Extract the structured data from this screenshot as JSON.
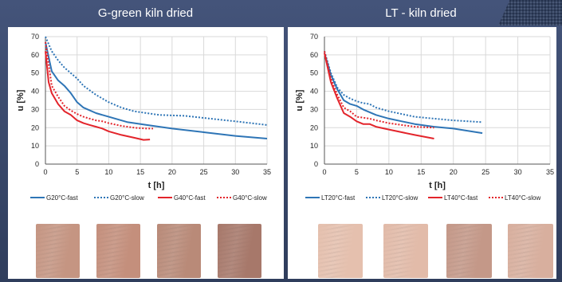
{
  "panels": [
    {
      "title": "G-green kiln dried"
    },
    {
      "title": "LT - kiln dried"
    }
  ],
  "colors": {
    "blue": "#2e75b6",
    "red": "#e3242b"
  },
  "photos": [
    {
      "name": "wood-sample-g20-fast",
      "color": "#c59582"
    },
    {
      "name": "wood-sample-g20-slow",
      "color": "#c48f7c"
    },
    {
      "name": "wood-sample-g40-fast",
      "color": "#b98a78"
    },
    {
      "name": "wood-sample-g40-slow",
      "color": "#a7786a"
    },
    {
      "name": "wood-sample-lt20-fast",
      "color": "#e5c0ae"
    },
    {
      "name": "wood-sample-lt20-slow",
      "color": "#e2bba9"
    },
    {
      "name": "wood-sample-lt40-fast",
      "color": "#c49888"
    },
    {
      "name": "wood-sample-lt40-slow",
      "color": "#d8af9e"
    }
  ],
  "chart_data": [
    {
      "type": "line",
      "title": "",
      "xlabel": "t [h]",
      "ylabel": "u [%]",
      "xlim": [
        0,
        35
      ],
      "ylim": [
        0,
        70
      ],
      "xticks": [
        0,
        5,
        10,
        15,
        20,
        25,
        30,
        35
      ],
      "yticks": [
        0,
        10,
        20,
        30,
        40,
        50,
        60,
        70
      ],
      "grid": true,
      "legend_position": "bottom",
      "series": [
        {
          "name": "G20°C-fast",
          "color": "#2e75b6",
          "dash": "solid",
          "points": [
            [
              0,
              67
            ],
            [
              1,
              51
            ],
            [
              2,
              46
            ],
            [
              3,
              43
            ],
            [
              4,
              39
            ],
            [
              5,
              34
            ],
            [
              6,
              31
            ],
            [
              8,
              28
            ],
            [
              10,
              26
            ],
            [
              13,
              23
            ],
            [
              16,
              21.5
            ],
            [
              20,
              19.5
            ],
            [
              25,
              17.5
            ],
            [
              30,
              15.5
            ],
            [
              35,
              14
            ]
          ]
        },
        {
          "name": "G20°C-slow",
          "color": "#2e75b6",
          "dash": "dotted",
          "points": [
            [
              0,
              70
            ],
            [
              1,
              62
            ],
            [
              2,
              57
            ],
            [
              3,
              53
            ],
            [
              4,
              50
            ],
            [
              5,
              47
            ],
            [
              6,
              43
            ],
            [
              8,
              38
            ],
            [
              10,
              34
            ],
            [
              12,
              31
            ],
            [
              14,
              29
            ],
            [
              16,
              28
            ],
            [
              18,
              27
            ],
            [
              22,
              26.5
            ],
            [
              26,
              25
            ],
            [
              30,
              23.5
            ],
            [
              35,
              21.5
            ]
          ]
        },
        {
          "name": "G40°C-fast",
          "color": "#e3242b",
          "dash": "solid",
          "points": [
            [
              0,
              62
            ],
            [
              0.5,
              45
            ],
            [
              1,
              39
            ],
            [
              2,
              33
            ],
            [
              3,
              29
            ],
            [
              4,
              27
            ],
            [
              5,
              24
            ],
            [
              6,
              22.5
            ],
            [
              7,
              21.5
            ],
            [
              8,
              20.5
            ],
            [
              9,
              19.5
            ],
            [
              10,
              18
            ],
            [
              12,
              16
            ],
            [
              14,
              14.5
            ],
            [
              15.5,
              13.3
            ],
            [
              16.5,
              13.5
            ]
          ]
        },
        {
          "name": "G40°C-slow",
          "color": "#e3242b",
          "dash": "dotted",
          "points": [
            [
              0,
              67
            ],
            [
              1,
              43
            ],
            [
              2,
              37
            ],
            [
              3,
              32
            ],
            [
              4,
              29.5
            ],
            [
              5,
              27.5
            ],
            [
              6,
              26
            ],
            [
              7,
              25
            ],
            [
              8,
              24
            ],
            [
              9,
              23.5
            ],
            [
              10,
              22.5
            ],
            [
              12,
              21
            ],
            [
              14,
              20
            ],
            [
              16,
              19.5
            ],
            [
              17,
              19.5
            ]
          ]
        }
      ]
    },
    {
      "type": "line",
      "title": "",
      "xlabel": "t [h]",
      "ylabel": "u [%]",
      "xlim": [
        0,
        35
      ],
      "ylim": [
        0,
        70
      ],
      "xticks": [
        0,
        5,
        10,
        15,
        20,
        25,
        30,
        35
      ],
      "yticks": [
        0,
        10,
        20,
        30,
        40,
        50,
        60,
        70
      ],
      "grid": true,
      "legend_position": "bottom",
      "series": [
        {
          "name": "LT20°C-fast",
          "color": "#2e75b6",
          "dash": "solid",
          "points": [
            [
              0,
              61
            ],
            [
              1,
              49
            ],
            [
              2,
              41
            ],
            [
              3,
              35
            ],
            [
              4,
              33
            ],
            [
              5,
              32
            ],
            [
              6,
              30
            ],
            [
              8,
              27
            ],
            [
              10,
              25
            ],
            [
              12,
              23.5
            ],
            [
              14,
              22
            ],
            [
              17,
              20.5
            ],
            [
              20,
              19.5
            ],
            [
              24.5,
              17
            ]
          ]
        },
        {
          "name": "LT20°C-slow",
          "color": "#2e75b6",
          "dash": "dotted",
          "points": [
            [
              0,
              62
            ],
            [
              1,
              50
            ],
            [
              2,
              42
            ],
            [
              3,
              38
            ],
            [
              4,
              36
            ],
            [
              5,
              34.5
            ],
            [
              6,
              33.5
            ],
            [
              7,
              33
            ],
            [
              8,
              31
            ],
            [
              10,
              29
            ],
            [
              12,
              27.5
            ],
            [
              14,
              26
            ],
            [
              17,
              25
            ],
            [
              20,
              24
            ],
            [
              24.5,
              23
            ]
          ]
        },
        {
          "name": "LT40°C-fast",
          "color": "#e3242b",
          "dash": "solid",
          "points": [
            [
              0,
              61
            ],
            [
              1,
              45
            ],
            [
              2,
              36
            ],
            [
              3,
              28
            ],
            [
              4,
              26
            ],
            [
              5,
              23.5
            ],
            [
              6,
              22
            ],
            [
              7,
              22
            ],
            [
              8,
              20.5
            ],
            [
              10,
              19
            ],
            [
              12,
              17.5
            ],
            [
              14,
              16
            ],
            [
              17,
              14
            ]
          ]
        },
        {
          "name": "LT40°C-slow",
          "color": "#e3242b",
          "dash": "dotted",
          "points": [
            [
              0,
              62
            ],
            [
              1,
              47
            ],
            [
              2,
              38
            ],
            [
              3,
              31
            ],
            [
              4,
              29
            ],
            [
              5,
              26
            ],
            [
              6,
              25.5
            ],
            [
              7,
              25
            ],
            [
              8,
              24
            ],
            [
              10,
              22.5
            ],
            [
              12,
              21.5
            ],
            [
              14,
              20.5
            ],
            [
              17,
              20
            ]
          ]
        }
      ]
    }
  ]
}
